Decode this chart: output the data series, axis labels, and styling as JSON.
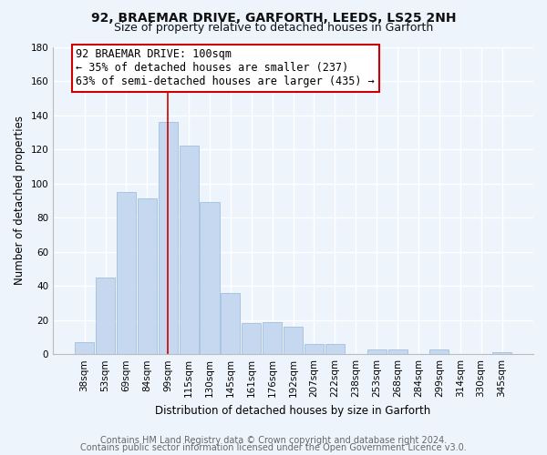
{
  "title": "92, BRAEMAR DRIVE, GARFORTH, LEEDS, LS25 2NH",
  "subtitle": "Size of property relative to detached houses in Garforth",
  "xlabel": "Distribution of detached houses by size in Garforth",
  "ylabel": "Number of detached properties",
  "bar_color": "#c5d8f0",
  "bar_edgecolor": "#9fbfdf",
  "property_line_color": "#cc0000",
  "categories": [
    "38sqm",
    "53sqm",
    "69sqm",
    "84sqm",
    "99sqm",
    "115sqm",
    "130sqm",
    "145sqm",
    "161sqm",
    "176sqm",
    "192sqm",
    "207sqm",
    "222sqm",
    "238sqm",
    "253sqm",
    "268sqm",
    "284sqm",
    "299sqm",
    "314sqm",
    "330sqm",
    "345sqm"
  ],
  "values": [
    7,
    45,
    95,
    91,
    136,
    122,
    89,
    36,
    18,
    19,
    16,
    6,
    6,
    0,
    3,
    3,
    0,
    3,
    0,
    0,
    1
  ],
  "ylim": [
    0,
    180
  ],
  "yticks": [
    0,
    20,
    40,
    60,
    80,
    100,
    120,
    140,
    160,
    180
  ],
  "annotation_line1": "92 BRAEMAR DRIVE: 100sqm",
  "annotation_line2": "← 35% of detached houses are smaller (237)",
  "annotation_line3": "63% of semi-detached houses are larger (435) →",
  "property_bar_index": 4,
  "footer_line1": "Contains HM Land Registry data © Crown copyright and database right 2024.",
  "footer_line2": "Contains public sector information licensed under the Open Government Licence v3.0.",
  "background_color": "#eef4fc",
  "grid_color": "#ffffff",
  "title_fontsize": 10,
  "subtitle_fontsize": 9,
  "axis_label_fontsize": 8.5,
  "tick_fontsize": 7.5,
  "annot_fontsize": 8.5,
  "footer_fontsize": 7
}
